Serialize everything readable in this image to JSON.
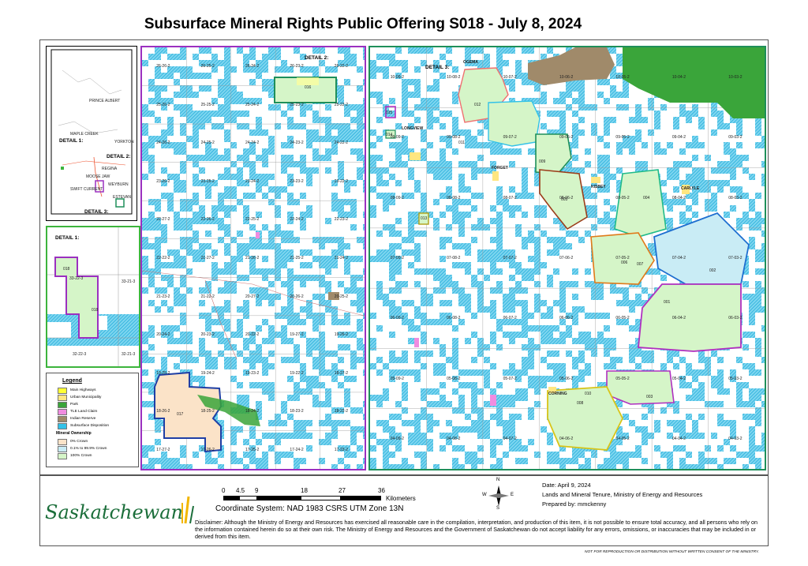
{
  "title": "Subsurface Mineral Rights Public Offering S018 - July 8, 2024",
  "key_map": {
    "labels": [
      "DETAIL 1:",
      "DETAIL 2:",
      "DETAIL 3:"
    ],
    "places": [
      "MAPLE CREEK",
      "SWIFT CURRENT",
      "REGINA",
      "MOOSE JAW",
      "ESTEVAN",
      "WEYBURN",
      "YORKTON",
      "PRINCE ALBERT"
    ]
  },
  "detail1": {
    "label": "DETAIL 1:",
    "grid_labels": [
      "33-22-3",
      "33-21-3",
      "32-22-3",
      "32-21-3"
    ],
    "parcels": [
      "018",
      "018"
    ]
  },
  "legend": {
    "title": "Legend",
    "items": [
      {
        "label": "Main Highways",
        "color": "#ffff33"
      },
      {
        "label": "Urban Municipality",
        "color": "#ffe680"
      },
      {
        "label": "Park",
        "color": "#3aa53a"
      },
      {
        "label": "TLE Land Claim",
        "color": "#f08ce0"
      },
      {
        "label": "Indian Reserve",
        "color": "#a08a6a"
      },
      {
        "label": "Subsurface Disposition",
        "color": "#33c2e8"
      }
    ],
    "ownership_title": "Mineral Ownership",
    "ownership": [
      {
        "label": "0% Crown",
        "color": "#fbe3c8"
      },
      {
        "label": "0.1% to 99.9% Crown",
        "color": "#c9ecf5"
      },
      {
        "label": "100% Crown",
        "color": "#d5f5c8"
      }
    ]
  },
  "detail2": {
    "label": "DETAIL 2:",
    "parcels": [
      "016",
      "017"
    ],
    "grid_labels": [
      "26-26-2",
      "26-25-2",
      "26-24-2",
      "26-23-2",
      "26-22-2",
      "25-26-2",
      "25-25-2",
      "25-24-2",
      "25-23-2",
      "25-22-2",
      "24-26-2",
      "24-25-2",
      "24-24-2",
      "24-23-2",
      "24-22-2",
      "23-26-2",
      "23-25-2",
      "23-24-2",
      "23-23-2",
      "23-22-2",
      "22-27-2",
      "22-26-2",
      "22-25-2",
      "22-24-2",
      "22-23-2",
      "22-22-2",
      "21-27-2",
      "21-26-2",
      "21-25-2",
      "21-24-2",
      "21-23-2",
      "21-22-2",
      "20-27-2",
      "20-26-2",
      "20-25-2",
      "20-24-2",
      "20-23-2",
      "20-22-2",
      "19-27-2",
      "19-26-2",
      "19-25-2",
      "19-24-2",
      "19-23-2",
      "19-22-2",
      "18-27-2",
      "18-26-2",
      "18-25-2",
      "18-24-2",
      "18-23-2",
      "18-22-2",
      "17-27-2",
      "17-26-2",
      "17-25-2",
      "17-24-2",
      "17-23-2",
      "17-22-2"
    ]
  },
  "detail3": {
    "label": "DETAIL 3:",
    "parcels": [
      "001",
      "002",
      "003",
      "004",
      "005",
      "006",
      "007",
      "008",
      "009",
      "010",
      "011",
      "012",
      "013",
      "014",
      "015"
    ],
    "grid_labels": [
      "10-09-2",
      "10-08-2",
      "10-07-2",
      "10-06-2",
      "10-05-2",
      "10-04-2",
      "10-03-2",
      "09-09-2",
      "09-08-2",
      "09-07-2",
      "09-06-2",
      "09-05-2",
      "09-04-2",
      "09-03-2",
      "08-09-2",
      "08-08-2",
      "08-07-2",
      "08-06-2",
      "08-05-2",
      "08-04-2",
      "08-03-2",
      "07-09-2",
      "07-08-2",
      "07-07-2",
      "07-06-2",
      "07-05-2",
      "07-04-2",
      "07-03-2",
      "06-09-2",
      "06-08-2",
      "06-07-2",
      "06-06-2",
      "06-05-2",
      "06-04-2",
      "06-03-2",
      "05-09-2",
      "05-08-2",
      "05-07-2",
      "05-06-2",
      "05-05-2",
      "05-04-2",
      "05-03-2",
      "04-09-2",
      "04-08-2",
      "04-07-2",
      "04-06-2",
      "04-05-2",
      "04-04-2",
      "04-03-2"
    ],
    "places": [
      "OGEMA",
      "LONGVIEW",
      "FORGET",
      "KISBEY",
      "CARLYLE",
      "CORNING"
    ]
  },
  "scale": {
    "ticks": [
      "0",
      "4.5",
      "9",
      "18",
      "27",
      "36"
    ],
    "unit": "Kilometers"
  },
  "north": {
    "n": "N",
    "s": "S",
    "e": "E",
    "w": "W"
  },
  "coordinate_system": "Coordinate System: NAD 1983 CSRS UTM Zone 13N",
  "info": {
    "date": "Date: April 9, 2024",
    "org": "Lands and Mineral Tenure, Ministry of Energy and Resources",
    "prepared": "Prepared by: mmckenny"
  },
  "logo_text": "Saskatchewan",
  "disclaimer": "Disclaimer: Although the Ministry of Energy and Resources has exercised all reasonable care in the compilation, interpretation, and production of this item, it is not possible to ensure total accuracy, and all persons who rely on the information contained herein do so at their own risk. The Ministry of Energy and Resources and the Government of Saskatchewan do not accept liability for any errors, omissions, or inaccuracies that may be included in or derived from this item.",
  "not_for_reproduction": "NOT FOR REPRODUCTION OR DISTRIBUTION WITHOUT WRITTEN CONSENT OF THE MINISTRY."
}
